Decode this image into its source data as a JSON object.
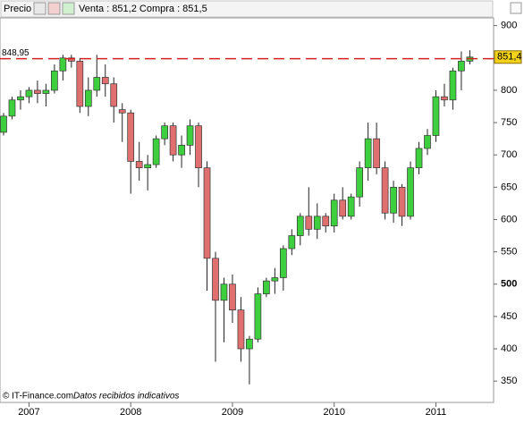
{
  "header": {
    "label": "Precio",
    "quote": "Venta : 851,2 Compra : 851,5"
  },
  "footer": {
    "source": "© IT-Finance.com",
    "note": "Datos recibidos indicativos"
  },
  "chart_data": {
    "type": "candlestick",
    "categories": [
      null,
      null,
      null,
      "2007",
      null,
      null,
      null,
      null,
      null,
      null,
      null,
      null,
      null,
      null,
      null,
      "2008",
      null,
      null,
      null,
      null,
      null,
      null,
      null,
      null,
      null,
      null,
      null,
      "2009",
      null,
      null,
      null,
      null,
      null,
      null,
      null,
      null,
      null,
      null,
      null,
      "2010",
      null,
      null,
      null,
      null,
      null,
      null,
      null,
      null,
      null,
      null,
      null,
      "2011",
      null,
      null,
      null,
      null
    ],
    "open": [
      735,
      760,
      785,
      790,
      800,
      795,
      800,
      830,
      850,
      845,
      775,
      800,
      820,
      810,
      770,
      765,
      690,
      680,
      685,
      725,
      745,
      700,
      715,
      745,
      680,
      540,
      475,
      500,
      460,
      400,
      415,
      485,
      505,
      510,
      555,
      575,
      605,
      585,
      605,
      590,
      630,
      605,
      635,
      680,
      725,
      680,
      610,
      650,
      605,
      680,
      710,
      730,
      790,
      785,
      830,
      845
    ],
    "high": [
      765,
      790,
      800,
      805,
      815,
      810,
      840,
      855,
      855,
      850,
      820,
      855,
      840,
      820,
      780,
      770,
      720,
      700,
      730,
      750,
      750,
      730,
      755,
      750,
      690,
      550,
      510,
      515,
      480,
      420,
      495,
      510,
      525,
      560,
      585,
      610,
      650,
      625,
      610,
      640,
      650,
      640,
      690,
      750,
      750,
      690,
      660,
      655,
      690,
      720,
      740,
      800,
      810,
      835,
      860,
      862
    ],
    "low": [
      730,
      755,
      770,
      780,
      780,
      775,
      795,
      815,
      835,
      765,
      760,
      790,
      790,
      750,
      720,
      640,
      660,
      645,
      680,
      715,
      690,
      680,
      700,
      650,
      490,
      380,
      410,
      440,
      380,
      345,
      410,
      480,
      485,
      490,
      545,
      560,
      575,
      570,
      580,
      580,
      600,
      600,
      620,
      660,
      670,
      600,
      595,
      590,
      600,
      670,
      700,
      720,
      775,
      770,
      800,
      840
    ],
    "close": [
      760,
      785,
      790,
      800,
      795,
      800,
      830,
      850,
      845,
      775,
      800,
      820,
      810,
      775,
      765,
      690,
      680,
      685,
      725,
      745,
      700,
      715,
      745,
      680,
      540,
      475,
      500,
      460,
      400,
      415,
      485,
      505,
      510,
      555,
      575,
      605,
      585,
      605,
      590,
      630,
      605,
      635,
      680,
      725,
      680,
      610,
      650,
      605,
      680,
      710,
      730,
      790,
      785,
      830,
      845,
      851.4
    ],
    "up_color": "#3ecf3e",
    "down_color": "#e07070",
    "ylim": [
      317,
      912
    ],
    "yticks": [
      350,
      400,
      450,
      500,
      550,
      600,
      650,
      700,
      750,
      800,
      850,
      900
    ],
    "reference": {
      "value": 848.95,
      "label": "848,95",
      "color": "#d42020"
    },
    "last": {
      "value": 851.4,
      "label": "851,4",
      "color": "#f5d21a"
    }
  }
}
